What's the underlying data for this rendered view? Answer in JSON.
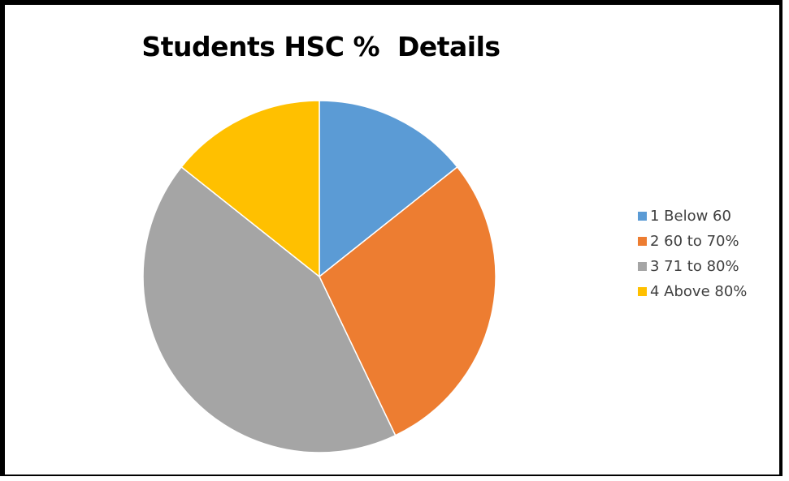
{
  "chart_data": {
    "type": "pie",
    "title": "Students HSC %  Details",
    "categories": [
      "1 Below 60",
      "2 60 to 70%",
      "3 71 to 80%",
      "4 Above 80%"
    ],
    "values": [
      14.3,
      28.6,
      42.8,
      14.3
    ],
    "colors": [
      "#5B9BD5",
      "#ED7D31",
      "#A5A5A5",
      "#FFC000"
    ],
    "start_angle_deg": 0,
    "direction": "clockwise",
    "legend_position": "right",
    "data_labels": false
  }
}
